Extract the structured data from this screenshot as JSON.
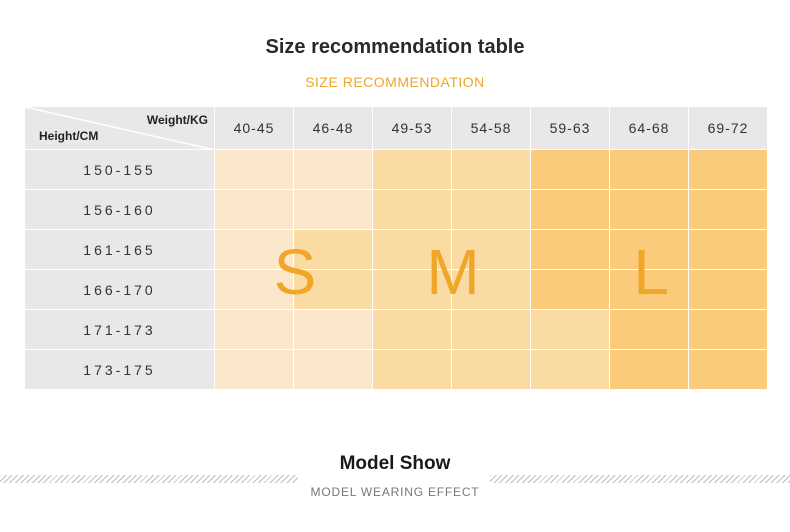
{
  "header": {
    "title": "Size recommendation table",
    "subtitle": "SIZE RECOMMENDATION"
  },
  "table": {
    "corner_weight_label": "Weight/KG",
    "corner_height_label": "Height/CM",
    "weights": [
      "40-45",
      "46-48",
      "49-53",
      "54-58",
      "59-63",
      "64-68",
      "69-72"
    ],
    "heights": [
      "150-155",
      "156-160",
      "161-165",
      "166-170",
      "171-173",
      "173-175"
    ],
    "size_grid": [
      [
        "S",
        "S",
        "M",
        "M",
        "L",
        "L",
        "L"
      ],
      [
        "S",
        "S",
        "M",
        "M",
        "L",
        "L",
        "L"
      ],
      [
        "S",
        "M",
        "M",
        "M",
        "L",
        "L",
        "L"
      ],
      [
        "S",
        "M",
        "M",
        "M",
        "L",
        "L",
        "L"
      ],
      [
        "S",
        "S",
        "M",
        "M",
        "M",
        "L",
        "L"
      ],
      [
        "S",
        "S",
        "M",
        "M",
        "M",
        "L",
        "L"
      ]
    ],
    "size_labels": [
      "S",
      "M",
      "L"
    ],
    "colors": {
      "S": "#fbe8cb",
      "M": "#fadba4",
      "L": "#fbcb7c",
      "header_bg": "#e9e7e8",
      "letter": "#f0a628"
    }
  },
  "footer": {
    "title": "Model Show",
    "subtitle": "MODEL WEARING EFFECT"
  }
}
